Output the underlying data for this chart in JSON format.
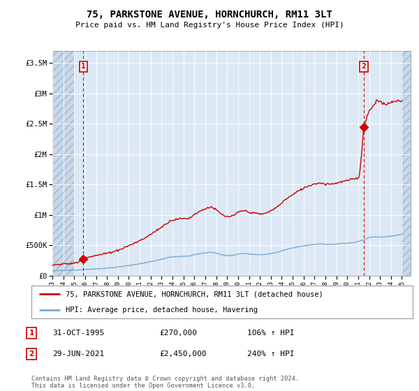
{
  "title": "75, PARKSTONE AVENUE, HORNCHURCH, RM11 3LT",
  "subtitle": "Price paid vs. HM Land Registry's House Price Index (HPI)",
  "ylim": [
    0,
    3700000
  ],
  "yticks": [
    0,
    500000,
    1000000,
    1500000,
    2000000,
    2500000,
    3000000,
    3500000
  ],
  "ytick_labels": [
    "£0",
    "£500K",
    "£1M",
    "£1.5M",
    "£2M",
    "£2.5M",
    "£3M",
    "£3.5M"
  ],
  "xlim_start": 1993.0,
  "xlim_end": 2025.8,
  "background_color": "#ffffff",
  "plot_bg_color": "#dce9f5",
  "hatch_bg_color": "#c8d8e8",
  "grid_color": "#ffffff",
  "transaction1": {
    "year": 1995.833,
    "price": 270000,
    "label": "1"
  },
  "transaction2": {
    "year": 2021.5,
    "price": 2450000,
    "label": "2"
  },
  "legend_line1": "75, PARKSTONE AVENUE, HORNCHURCH, RM11 3LT (detached house)",
  "legend_line2": "HPI: Average price, detached house, Havering",
  "table_rows": [
    {
      "num": "1",
      "date": "31-OCT-1995",
      "price": "£270,000",
      "hpi": "106% ↑ HPI"
    },
    {
      "num": "2",
      "date": "29-JUN-2021",
      "price": "£2,450,000",
      "hpi": "240% ↑ HPI"
    }
  ],
  "footer": "Contains HM Land Registry data © Crown copyright and database right 2024.\nThis data is licensed under the Open Government Licence v3.0.",
  "red_line_color": "#cc0000",
  "blue_line_color": "#7aaacf",
  "vline_color": "#cc0000",
  "marker_box_color": "#cc0000"
}
